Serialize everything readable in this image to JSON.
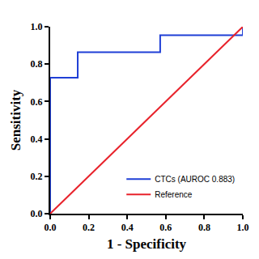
{
  "chart_data": {
    "type": "line",
    "x_label": "1 - Specificity",
    "y_label": "Sensitivity",
    "series": [
      {
        "name": "CTCs (AUROC 0.883)",
        "color": "#1f3fd6",
        "x": [
          0,
          0,
          0.143,
          0.143,
          0.571,
          0.571,
          1.0,
          1.0
        ],
        "values": [
          0,
          0.727,
          0.727,
          0.864,
          0.864,
          0.955,
          0.955,
          1.0
        ]
      },
      {
        "name": "Reference",
        "color": "#e8222b",
        "x": [
          0,
          1.0
        ],
        "values": [
          0,
          1.0
        ]
      }
    ],
    "xlim": [
      0,
      1
    ],
    "ylim": [
      0,
      1
    ],
    "xticks": [
      {
        "value": 0,
        "label": "0.0"
      },
      0.2,
      0.4,
      0.6,
      0.8,
      {
        "value": 1,
        "label": "1.0"
      }
    ],
    "yticks": [
      {
        "value": 0,
        "label": "0.0"
      },
      0.2,
      0.4,
      0.6,
      0.8,
      {
        "value": 1,
        "label": "1.0"
      }
    ],
    "grid": false,
    "legend": "lower right"
  }
}
